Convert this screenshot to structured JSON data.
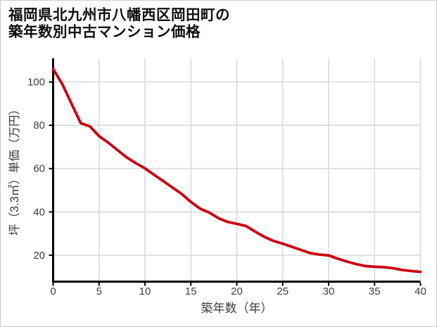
{
  "window": {
    "background": "#ffffff",
    "border_color": "#cccccc"
  },
  "title": {
    "line1": "福岡県北九州市八幡西区岡田町の",
    "line2": "築年数別中古マンション価格",
    "color": "#0d0d0d"
  },
  "chart_data": {
    "type": "line",
    "title": "福岡県北九州市八幡西区岡田町の築年数別中古マンション価格",
    "xlabel": "築年数（年）",
    "ylabel": "坪（3.3㎡）単価（万円）",
    "x": [
      0,
      1,
      2,
      3,
      4,
      5,
      6,
      7,
      8,
      9,
      10,
      11,
      12,
      13,
      14,
      15,
      16,
      17,
      18,
      19,
      20,
      21,
      22,
      23,
      24,
      25,
      26,
      27,
      28,
      29,
      30,
      31,
      32,
      33,
      34,
      35,
      36,
      37,
      38,
      39,
      40
    ],
    "series": [
      {
        "name": "坪単価",
        "color": "#cc0011",
        "values": [
          106.0,
          99.0,
          90.0,
          81.0,
          79.5,
          75.0,
          72.0,
          68.6,
          65.2,
          62.5,
          60.1,
          57.1,
          54.2,
          51.2,
          48.3,
          44.6,
          41.5,
          39.7,
          37.1,
          35.4,
          34.5,
          33.5,
          30.9,
          28.5,
          26.6,
          25.3,
          23.9,
          22.4,
          21.0,
          20.3,
          19.9,
          18.4,
          17.1,
          15.9,
          15.0,
          14.7,
          14.5,
          14.0,
          13.2,
          12.7,
          12.3
        ]
      }
    ],
    "xlim": [
      0,
      40
    ],
    "ylim": [
      7.8,
      110.9
    ],
    "x_ticks": [
      0,
      5,
      10,
      15,
      20,
      25,
      30,
      35,
      40
    ],
    "y_ticks": [
      20,
      40,
      60,
      80,
      100
    ],
    "grid": true,
    "legend": "none",
    "grid_color": "#dcdcdc",
    "axis_color": "#000000",
    "tick_label_color": "#3d3d3d",
    "axis_label_color": "#3a3a3a"
  }
}
